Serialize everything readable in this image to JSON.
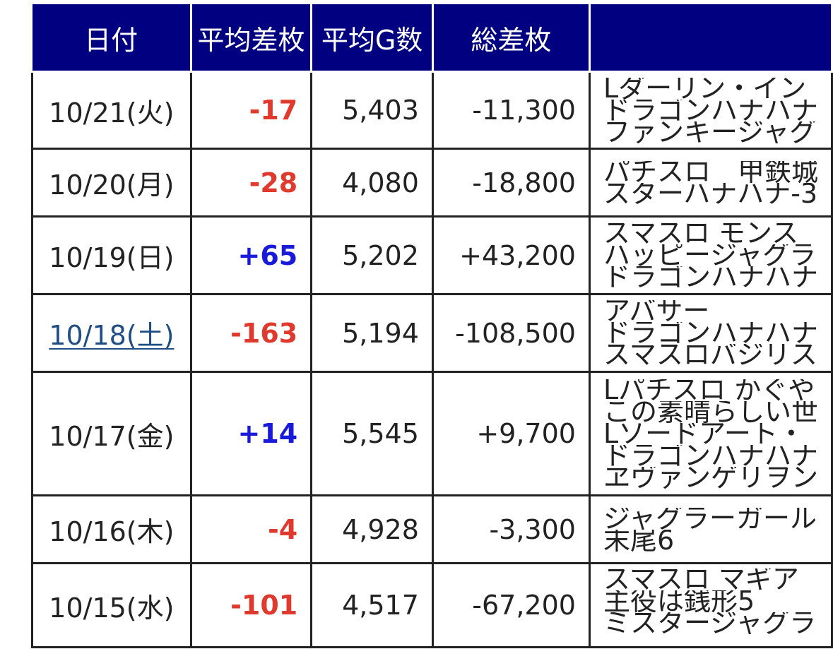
{
  "table": {
    "headers": {
      "date": "日付",
      "avg_diff": "平均差枚",
      "avg_games": "平均G数",
      "total_diff": "総差枚",
      "machines": ""
    },
    "rows": [
      {
        "date": "10/21(火)",
        "avg_diff": "-17",
        "avg_games": "5,403",
        "total_diff": "-11,300",
        "machines": [
          "Lダーリン・イン",
          "ドラゴンハナハナ",
          "ファンキージャグ"
        ]
      },
      {
        "date": "10/20(月)",
        "avg_diff": "-28",
        "avg_games": "4,080",
        "total_diff": "-18,800",
        "machines": [
          "パチスロ　甲鉄城",
          "スターハナハナ-3"
        ]
      },
      {
        "date": "10/19(日)",
        "avg_diff": "+65",
        "avg_games": "5,202",
        "total_diff": "+43,200",
        "machines": [
          "スマスロ モンス",
          "ハッピージャグラ",
          "ドラゴンハナハナ"
        ]
      },
      {
        "date": "10/18(土)",
        "avg_diff": "-163",
        "avg_games": "5,194",
        "total_diff": "-108,500",
        "machines": [
          "アバサー",
          "ドラゴンハナハナ",
          "スマスロバジリス"
        ]
      },
      {
        "date": "10/17(金)",
        "avg_diff": "+14",
        "avg_games": "5,545",
        "total_diff": "+9,700",
        "machines": [
          "Lパチスロ かぐや",
          "この素晴らしい世",
          "Lソードアート・",
          "ドラゴンハナハナ",
          "ヱヴァンゲリヲン"
        ]
      },
      {
        "date": "10/16(木)",
        "avg_diff": "-4",
        "avg_games": "4,928",
        "total_diff": "-3,300",
        "machines": [
          "ジャグラーガール",
          "末尾6"
        ]
      },
      {
        "date": "10/15(水)",
        "avg_diff": "-101",
        "avg_games": "4,517",
        "total_diff": "-67,200",
        "machines": [
          "スマスロ マギア",
          "主役は銭形5",
          "ミスタージャグラ"
        ]
      }
    ]
  },
  "colors": {
    "header_bg": "#000080",
    "negative": "#e03a2f",
    "positive": "#1a1adb",
    "date_text": "#4a6f9a"
  }
}
